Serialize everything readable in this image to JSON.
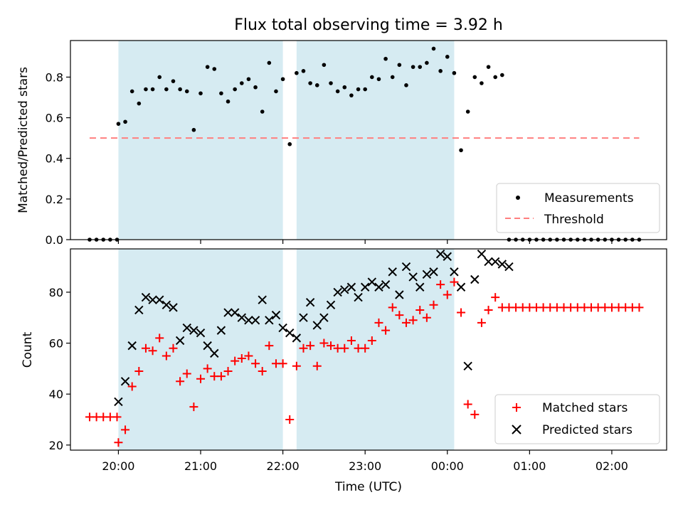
{
  "chart_data": [
    {
      "type": "scatter",
      "title": "Flux total observing time = 3.92 h",
      "xlabel": "",
      "ylabel": "Matched/Predicted stars",
      "xlim": [
        "19:25",
        "02:40"
      ],
      "ylim": [
        0,
        0.98
      ],
      "yticks": [
        0.0,
        0.2,
        0.4,
        0.6,
        0.8
      ],
      "ytick_labels": [
        "0.0",
        "0.2",
        "0.4",
        "0.6",
        "0.8"
      ],
      "shaded_spans": [
        [
          "20:00",
          "22:00"
        ],
        [
          "22:10",
          "00:05"
        ]
      ],
      "legend_position": "lower right",
      "series": [
        {
          "name": "Measurements",
          "marker": "dot",
          "color": "#000000",
          "x": [
            "19:39",
            "19:44",
            "19:49",
            "19:54",
            "19:59",
            "20:00",
            "20:05",
            "20:10",
            "20:15",
            "20:20",
            "20:25",
            "20:30",
            "20:35",
            "20:40",
            "20:45",
            "20:50",
            "20:55",
            "21:00",
            "21:05",
            "21:10",
            "21:15",
            "21:20",
            "21:25",
            "21:30",
            "21:35",
            "21:40",
            "21:45",
            "21:50",
            "21:55",
            "22:00",
            "22:05",
            "22:10",
            "22:15",
            "22:20",
            "22:25",
            "22:30",
            "22:35",
            "22:40",
            "22:45",
            "22:50",
            "22:55",
            "23:00",
            "23:05",
            "23:10",
            "23:15",
            "23:20",
            "23:25",
            "23:30",
            "23:35",
            "23:40",
            "23:45",
            "23:50",
            "23:55",
            "00:00",
            "00:05",
            "00:10",
            "00:15",
            "00:20",
            "00:25",
            "00:30",
            "00:35",
            "00:40",
            "00:45",
            "00:50",
            "00:55",
            "01:00",
            "01:05",
            "01:10",
            "01:15",
            "01:20",
            "01:25",
            "01:30",
            "01:35",
            "01:40",
            "01:45",
            "01:50",
            "01:55",
            "02:00",
            "02:05",
            "02:10",
            "02:15",
            "02:20"
          ],
          "y": [
            0,
            0,
            0,
            0,
            0,
            0.57,
            0.58,
            0.73,
            0.67,
            0.74,
            0.74,
            0.8,
            0.74,
            0.78,
            0.74,
            0.73,
            0.54,
            0.72,
            0.85,
            0.84,
            0.72,
            0.68,
            0.74,
            0.77,
            0.79,
            0.75,
            0.63,
            0.87,
            0.73,
            0.79,
            0.47,
            0.82,
            0.83,
            0.77,
            0.76,
            0.86,
            0.77,
            0.73,
            0.75,
            0.71,
            0.74,
            0.74,
            0.8,
            0.79,
            0.89,
            0.8,
            0.86,
            0.76,
            0.85,
            0.85,
            0.87,
            0.94,
            0.83,
            0.9,
            0.82,
            0.44,
            0.63,
            0.8,
            0.77,
            0.85,
            0.8,
            0.81,
            0,
            0,
            0,
            0,
            0,
            0,
            0,
            0,
            0,
            0,
            0,
            0,
            0,
            0,
            0,
            0,
            0,
            0,
            0,
            0
          ]
        },
        {
          "name": "Threshold",
          "style": "dashed",
          "color": "#ff7f7f",
          "x": [
            "19:39",
            "02:20"
          ],
          "y": [
            0.5,
            0.5
          ]
        }
      ]
    },
    {
      "type": "scatter",
      "title": "",
      "xlabel": "Time (UTC)",
      "ylabel": "Count",
      "xlim": [
        "19:25",
        "02:40"
      ],
      "ylim": [
        18,
        97
      ],
      "yticks": [
        20,
        40,
        60,
        80
      ],
      "ytick_labels": [
        "20",
        "40",
        "60",
        "80"
      ],
      "xticks": [
        "20:00",
        "21:00",
        "22:00",
        "23:00",
        "00:00",
        "01:00",
        "02:00"
      ],
      "xtick_labels": [
        "20:00",
        "21:00",
        "22:00",
        "23:00",
        "00:00",
        "01:00",
        "02:00"
      ],
      "shaded_spans": [
        [
          "20:00",
          "22:00"
        ],
        [
          "22:10",
          "00:05"
        ]
      ],
      "legend_position": "lower right",
      "series": [
        {
          "name": "Matched stars",
          "marker": "plus",
          "color": "#ff0000",
          "x": [
            "19:39",
            "19:44",
            "19:49",
            "19:54",
            "19:59",
            "20:00",
            "20:05",
            "20:10",
            "20:15",
            "20:20",
            "20:25",
            "20:30",
            "20:35",
            "20:40",
            "20:45",
            "20:50",
            "20:55",
            "21:00",
            "21:05",
            "21:10",
            "21:15",
            "21:20",
            "21:25",
            "21:30",
            "21:35",
            "21:40",
            "21:45",
            "21:50",
            "21:55",
            "22:00",
            "22:05",
            "22:10",
            "22:15",
            "22:20",
            "22:25",
            "22:30",
            "22:35",
            "22:40",
            "22:45",
            "22:50",
            "22:55",
            "23:00",
            "23:05",
            "23:10",
            "23:15",
            "23:20",
            "23:25",
            "23:30",
            "23:35",
            "23:40",
            "23:45",
            "23:50",
            "23:55",
            "00:00",
            "00:05",
            "00:10",
            "00:15",
            "00:20",
            "00:25",
            "00:30",
            "00:35",
            "00:40",
            "00:45",
            "00:50",
            "00:55",
            "01:00",
            "01:05",
            "01:10",
            "01:15",
            "01:20",
            "01:25",
            "01:30",
            "01:35",
            "01:40",
            "01:45",
            "01:50",
            "01:55",
            "02:00",
            "02:05",
            "02:10",
            "02:15",
            "02:20"
          ],
          "y": [
            31,
            31,
            31,
            31,
            31,
            21,
            26,
            43,
            49,
            58,
            57,
            62,
            55,
            58,
            45,
            48,
            35,
            46,
            50,
            47,
            47,
            49,
            53,
            54,
            55,
            52,
            49,
            59,
            52,
            52,
            30,
            51,
            58,
            59,
            51,
            60,
            59,
            58,
            58,
            61,
            58,
            58,
            61,
            68,
            65,
            74,
            71,
            68,
            69,
            73,
            70,
            75,
            83,
            79,
            84,
            72,
            36,
            32,
            68,
            73,
            78,
            74,
            74,
            74,
            74,
            74,
            74,
            74,
            74,
            74,
            74,
            74,
            74,
            74,
            74,
            74,
            74,
            74,
            74,
            74,
            74,
            74
          ]
        },
        {
          "name": "Predicted stars",
          "marker": "x",
          "color": "#000000",
          "x": [
            "20:00",
            "20:05",
            "20:10",
            "20:15",
            "20:20",
            "20:25",
            "20:30",
            "20:35",
            "20:40",
            "20:45",
            "20:50",
            "20:55",
            "21:00",
            "21:05",
            "21:10",
            "21:15",
            "21:20",
            "21:25",
            "21:30",
            "21:35",
            "21:40",
            "21:45",
            "21:50",
            "21:55",
            "22:00",
            "22:05",
            "22:10",
            "22:15",
            "22:20",
            "22:25",
            "22:30",
            "22:35",
            "22:40",
            "22:45",
            "22:50",
            "22:55",
            "23:00",
            "23:05",
            "23:10",
            "23:15",
            "23:20",
            "23:25",
            "23:30",
            "23:35",
            "23:40",
            "23:45",
            "23:50",
            "23:55",
            "00:00",
            "00:05",
            "00:10",
            "00:15",
            "00:20",
            "00:25",
            "00:30",
            "00:35",
            "00:40",
            "00:45"
          ],
          "y": [
            37,
            45,
            59,
            73,
            78,
            77,
            77,
            75,
            74,
            61,
            66,
            65,
            64,
            59,
            56,
            65,
            72,
            72,
            70,
            69,
            69,
            77,
            69,
            71,
            66,
            64,
            62,
            70,
            76,
            67,
            70,
            75,
            80,
            81,
            82,
            78,
            82,
            84,
            82,
            83,
            88,
            79,
            90,
            86,
            82,
            87,
            88,
            95,
            94,
            88,
            82,
            51,
            85,
            95,
            92,
            92,
            91,
            90
          ]
        }
      ]
    }
  ]
}
